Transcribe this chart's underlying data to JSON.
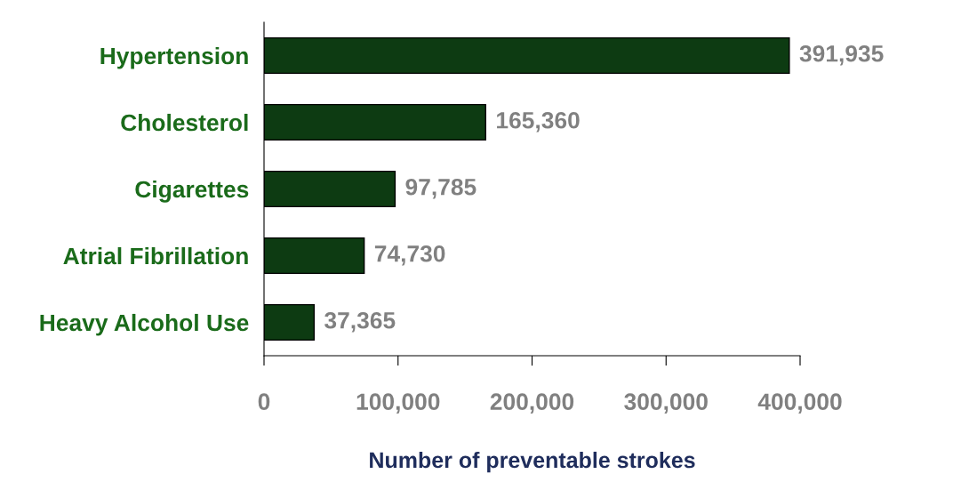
{
  "chart_data": {
    "type": "bar",
    "orientation": "horizontal",
    "categories": [
      "Hypertension",
      "Cholesterol",
      "Cigarettes",
      "Atrial Fibrillation",
      "Heavy Alcohol Use"
    ],
    "values": [
      391935,
      165360,
      97785,
      74730,
      37365
    ],
    "color": "#0d3b12",
    "value_labels": [
      "391,935",
      "165,360",
      "97,785",
      "74,730",
      "37,365"
    ],
    "xlim": [
      0,
      400000
    ],
    "xticks": [
      0,
      {
        "value": 100000,
        "label": "100,000"
      },
      {
        "value": 200000,
        "label": "200,000"
      },
      {
        "value": 300000,
        "label": "300,000"
      },
      {
        "value": 400000,
        "label": "400,000"
      }
    ],
    "xlabel": "Number of preventable strokes"
  }
}
